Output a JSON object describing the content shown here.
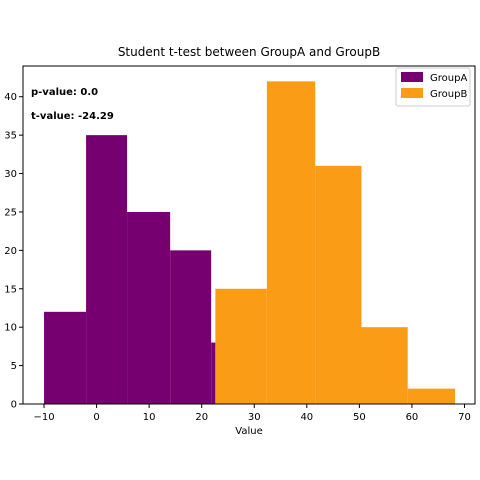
{
  "chart_data": {
    "type": "bar",
    "title": "Student t-test between GroupA and GroupB",
    "xlabel": "Value",
    "ylabel": "",
    "xlim": [
      -14,
      72
    ],
    "ylim": [
      0,
      44
    ],
    "xticks": [
      -10,
      0,
      10,
      20,
      30,
      40,
      50,
      60,
      70
    ],
    "yticks": [
      0,
      5,
      10,
      15,
      20,
      25,
      30,
      35,
      40
    ],
    "legend": {
      "location": "top-right"
    },
    "grid": false,
    "series": [
      {
        "name": "GroupA",
        "color": "#770070",
        "bins": [
          {
            "x0": -10.0,
            "x1": -2.0,
            "count": 12
          },
          {
            "x0": -2.0,
            "x1": 5.8,
            "count": 35
          },
          {
            "x0": 5.8,
            "x1": 14.0,
            "count": 25
          },
          {
            "x0": 14.0,
            "x1": 21.8,
            "count": 20
          },
          {
            "x0": 21.8,
            "x1": 22.6,
            "count": 8
          }
        ]
      },
      {
        "name": "GroupB",
        "color": "#fa9c16",
        "bins": [
          {
            "x0": 22.6,
            "x1": 32.4,
            "count": 15
          },
          {
            "x0": 32.4,
            "x1": 41.6,
            "count": 42
          },
          {
            "x0": 41.6,
            "x1": 50.4,
            "count": 31
          },
          {
            "x0": 50.4,
            "x1": 59.2,
            "count": 10
          },
          {
            "x0": 59.2,
            "x1": 68.2,
            "count": 2
          }
        ]
      }
    ],
    "annotations": [
      "p-value: 0.0",
      "t-value: -24.29"
    ]
  }
}
